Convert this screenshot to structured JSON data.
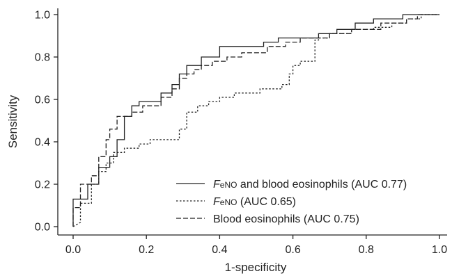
{
  "chart_data": {
    "type": "line",
    "title": "",
    "xlabel": "1-specificity",
    "ylabel": "Sensitivity",
    "xlim": [
      0,
      1
    ],
    "ylim": [
      0,
      1
    ],
    "x_ticks": [
      "0.0",
      "0.2",
      "0.4",
      "0.6",
      "0.8",
      "1.0"
    ],
    "y_ticks": [
      "0.0",
      "0.2",
      "0.4",
      "0.6",
      "0.8",
      "1.0"
    ],
    "grid": false,
    "legend_position": "bottom-right",
    "series": [
      {
        "name": "FeNO and blood eosinophils (AUC 0.77)",
        "legend": {
          "prefix_italic": "F",
          "prefix_small": "eNO",
          "rest": " and blood eosinophils (AUC 0.77)"
        },
        "style": "solid",
        "points": [
          [
            0,
            0
          ],
          [
            0,
            0.13
          ],
          [
            0.04,
            0.13
          ],
          [
            0.04,
            0.2
          ],
          [
            0.07,
            0.2
          ],
          [
            0.07,
            0.28
          ],
          [
            0.1,
            0.28
          ],
          [
            0.1,
            0.33
          ],
          [
            0.12,
            0.33
          ],
          [
            0.12,
            0.41
          ],
          [
            0.14,
            0.41
          ],
          [
            0.14,
            0.52
          ],
          [
            0.16,
            0.52
          ],
          [
            0.16,
            0.57
          ],
          [
            0.18,
            0.57
          ],
          [
            0.18,
            0.59
          ],
          [
            0.24,
            0.59
          ],
          [
            0.24,
            0.63
          ],
          [
            0.27,
            0.63
          ],
          [
            0.27,
            0.67
          ],
          [
            0.29,
            0.67
          ],
          [
            0.29,
            0.72
          ],
          [
            0.31,
            0.72
          ],
          [
            0.31,
            0.76
          ],
          [
            0.35,
            0.76
          ],
          [
            0.35,
            0.8
          ],
          [
            0.4,
            0.8
          ],
          [
            0.4,
            0.85
          ],
          [
            0.52,
            0.85
          ],
          [
            0.52,
            0.87
          ],
          [
            0.56,
            0.87
          ],
          [
            0.56,
            0.89
          ],
          [
            0.67,
            0.89
          ],
          [
            0.67,
            0.91
          ],
          [
            0.72,
            0.91
          ],
          [
            0.72,
            0.93
          ],
          [
            0.77,
            0.93
          ],
          [
            0.77,
            0.96
          ],
          [
            0.82,
            0.96
          ],
          [
            0.82,
            0.98
          ],
          [
            0.9,
            0.98
          ],
          [
            0.9,
            1.0
          ],
          [
            1.0,
            1.0
          ]
        ]
      },
      {
        "name": "FeNO (AUC 0.65)",
        "legend": {
          "prefix_italic": "F",
          "prefix_small": "eNO",
          "rest": " (AUC 0.65)"
        },
        "style": "dotted",
        "points": [
          [
            0,
            0
          ],
          [
            0.02,
            0.02
          ],
          [
            0.02,
            0.11
          ],
          [
            0.05,
            0.11
          ],
          [
            0.05,
            0.2
          ],
          [
            0.07,
            0.2
          ],
          [
            0.07,
            0.26
          ],
          [
            0.09,
            0.26
          ],
          [
            0.09,
            0.3
          ],
          [
            0.11,
            0.3
          ],
          [
            0.11,
            0.35
          ],
          [
            0.14,
            0.35
          ],
          [
            0.14,
            0.37
          ],
          [
            0.18,
            0.37
          ],
          [
            0.18,
            0.39
          ],
          [
            0.21,
            0.39
          ],
          [
            0.21,
            0.41
          ],
          [
            0.29,
            0.41
          ],
          [
            0.29,
            0.46
          ],
          [
            0.31,
            0.46
          ],
          [
            0.31,
            0.54
          ],
          [
            0.34,
            0.54
          ],
          [
            0.34,
            0.57
          ],
          [
            0.37,
            0.57
          ],
          [
            0.37,
            0.59
          ],
          [
            0.4,
            0.59
          ],
          [
            0.4,
            0.61
          ],
          [
            0.44,
            0.61
          ],
          [
            0.44,
            0.63
          ],
          [
            0.51,
            0.63
          ],
          [
            0.51,
            0.65
          ],
          [
            0.57,
            0.65
          ],
          [
            0.57,
            0.67
          ],
          [
            0.59,
            0.67
          ],
          [
            0.59,
            0.72
          ],
          [
            0.6,
            0.72
          ],
          [
            0.6,
            0.76
          ],
          [
            0.62,
            0.76
          ],
          [
            0.62,
            0.78
          ],
          [
            0.66,
            0.78
          ],
          [
            0.66,
            0.88
          ],
          [
            0.67,
            0.88
          ],
          [
            0.67,
            0.89
          ],
          [
            0.7,
            0.89
          ],
          [
            0.7,
            0.91
          ],
          [
            0.76,
            0.91
          ],
          [
            0.76,
            0.93
          ],
          [
            0.82,
            0.93
          ],
          [
            0.82,
            0.94
          ],
          [
            0.87,
            0.94
          ],
          [
            0.87,
            0.96
          ],
          [
            0.91,
            0.96
          ],
          [
            0.91,
            0.98
          ],
          [
            0.95,
            0.98
          ],
          [
            0.95,
            1.0
          ],
          [
            1.0,
            1.0
          ]
        ]
      },
      {
        "name": "Blood eosinophils (AUC 0.75)",
        "legend": {
          "prefix_italic": "",
          "prefix_small": "",
          "rest": "Blood eosinophils (AUC 0.75)"
        },
        "style": "dashed",
        "points": [
          [
            0,
            0
          ],
          [
            0,
            0.09
          ],
          [
            0.02,
            0.09
          ],
          [
            0.02,
            0.2
          ],
          [
            0.05,
            0.2
          ],
          [
            0.05,
            0.24
          ],
          [
            0.07,
            0.24
          ],
          [
            0.07,
            0.33
          ],
          [
            0.09,
            0.33
          ],
          [
            0.09,
            0.41
          ],
          [
            0.1,
            0.41
          ],
          [
            0.1,
            0.46
          ],
          [
            0.12,
            0.46
          ],
          [
            0.12,
            0.52
          ],
          [
            0.16,
            0.52
          ],
          [
            0.16,
            0.54
          ],
          [
            0.19,
            0.54
          ],
          [
            0.19,
            0.57
          ],
          [
            0.24,
            0.57
          ],
          [
            0.24,
            0.61
          ],
          [
            0.27,
            0.61
          ],
          [
            0.27,
            0.65
          ],
          [
            0.29,
            0.65
          ],
          [
            0.29,
            0.7
          ],
          [
            0.31,
            0.7
          ],
          [
            0.31,
            0.72
          ],
          [
            0.33,
            0.72
          ],
          [
            0.33,
            0.74
          ],
          [
            0.35,
            0.74
          ],
          [
            0.35,
            0.76
          ],
          [
            0.38,
            0.76
          ],
          [
            0.38,
            0.78
          ],
          [
            0.42,
            0.78
          ],
          [
            0.42,
            0.8
          ],
          [
            0.46,
            0.8
          ],
          [
            0.46,
            0.82
          ],
          [
            0.53,
            0.82
          ],
          [
            0.53,
            0.85
          ],
          [
            0.58,
            0.85
          ],
          [
            0.58,
            0.87
          ],
          [
            0.62,
            0.87
          ],
          [
            0.62,
            0.89
          ],
          [
            0.7,
            0.89
          ],
          [
            0.7,
            0.91
          ],
          [
            0.76,
            0.91
          ],
          [
            0.76,
            0.93
          ],
          [
            0.84,
            0.93
          ],
          [
            0.84,
            0.96
          ],
          [
            0.91,
            0.96
          ],
          [
            0.91,
            0.98
          ],
          [
            0.94,
            0.98
          ],
          [
            0.94,
            1.0
          ],
          [
            1.0,
            1.0
          ]
        ]
      }
    ]
  }
}
